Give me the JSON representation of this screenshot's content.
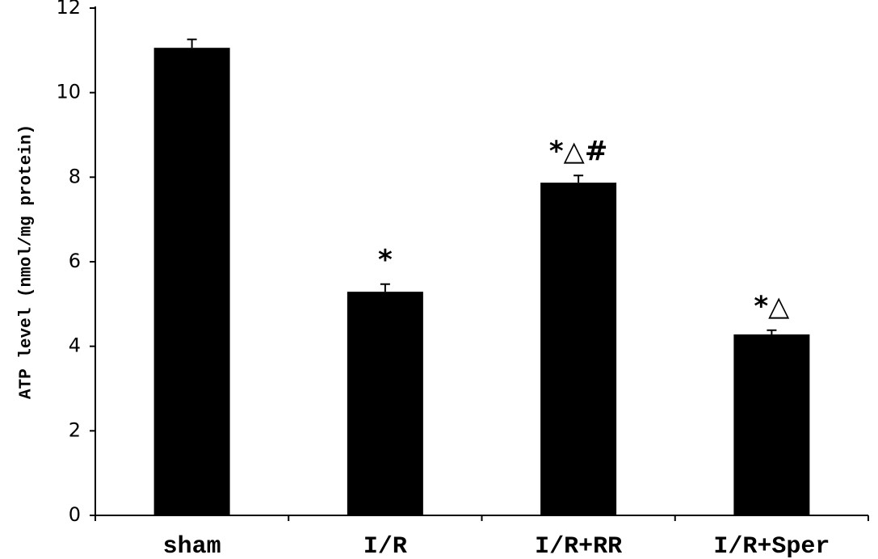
{
  "chart_data": {
    "type": "bar",
    "ylabel": "ATP level (nmol/mg protein)",
    "categories": [
      "sham",
      "I/R",
      "I/R+RR",
      "I/R+Sper"
    ],
    "values": [
      11.06,
      5.29,
      7.87,
      4.28
    ],
    "errors": [
      0.2,
      0.18,
      0.17,
      0.1
    ],
    "annotations": [
      null,
      "*",
      "*△#",
      "*△"
    ],
    "color": "#000000",
    "ylim": [
      0,
      12
    ],
    "yticks": [
      0,
      2,
      4,
      6,
      8,
      10,
      12
    ],
    "grid": false
  }
}
